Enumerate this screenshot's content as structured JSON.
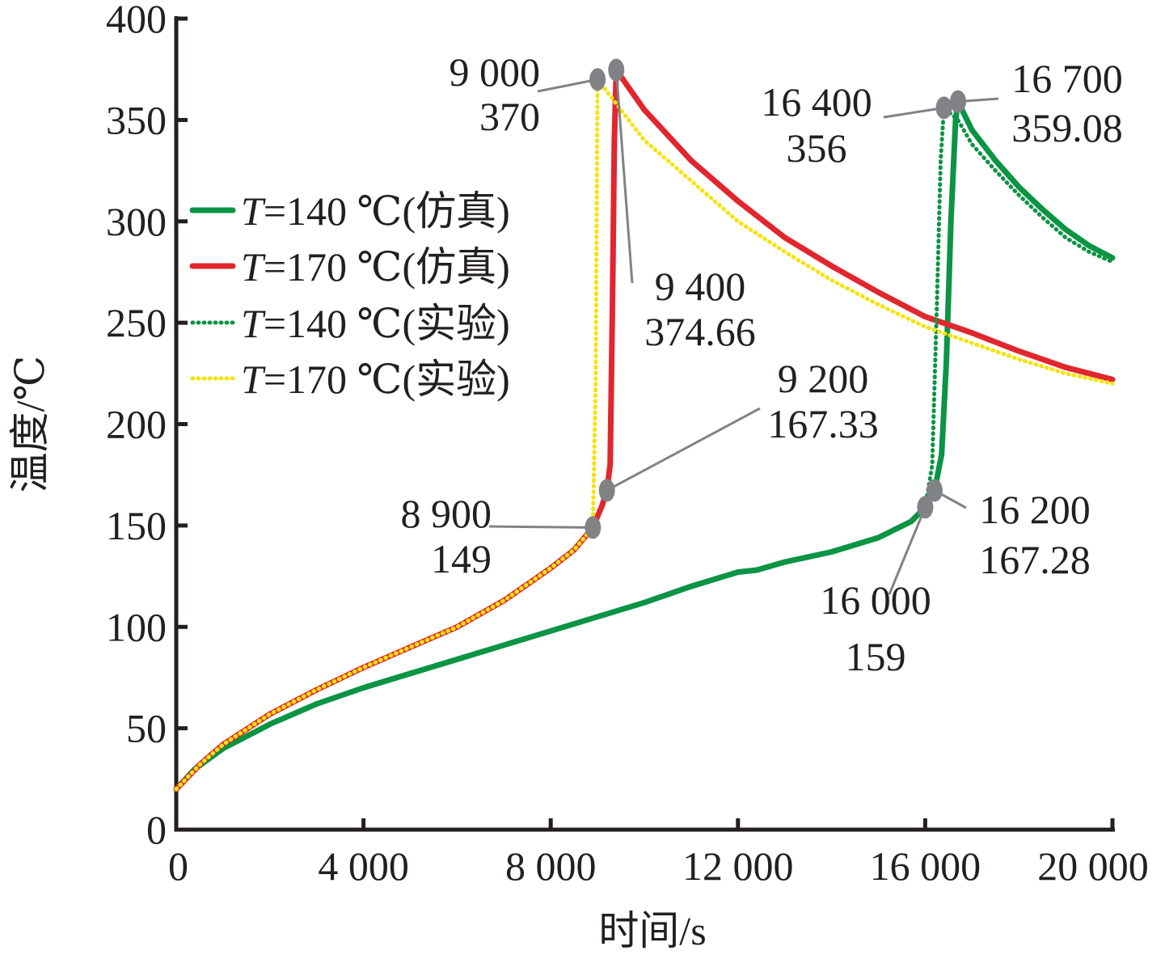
{
  "chart_data": {
    "type": "line",
    "xlabel": "时间/s",
    "ylabel": "温度/℃",
    "xlim": [
      0,
      20000
    ],
    "ylim": [
      0,
      400
    ],
    "x_ticks": [
      {
        "value": 0,
        "label": "0"
      },
      {
        "value": 4000,
        "label": "4 000"
      },
      {
        "value": 8000,
        "label": "8 000"
      },
      {
        "value": 12000,
        "label": "12 000"
      },
      {
        "value": 16000,
        "label": "16 000"
      },
      {
        "value": 20000,
        "label": "20 000"
      }
    ],
    "y_ticks": [
      {
        "value": 0,
        "label": "0"
      },
      {
        "value": 50,
        "label": "50"
      },
      {
        "value": 100,
        "label": "100"
      },
      {
        "value": 150,
        "label": "150"
      },
      {
        "value": 200,
        "label": "200"
      },
      {
        "value": 250,
        "label": "250"
      },
      {
        "value": 300,
        "label": "300"
      },
      {
        "value": 350,
        "label": "350"
      },
      {
        "value": 400,
        "label": "400"
      }
    ],
    "grid": false,
    "legend_position": "left-upper",
    "series": [
      {
        "name": "T=140 ℃(仿真)",
        "legend_prefix": "T",
        "legend_rest": "=140 ℃(仿真)",
        "color": "#0b9444",
        "style": "solid",
        "points": [
          [
            0,
            20
          ],
          [
            400,
            30
          ],
          [
            1000,
            40
          ],
          [
            2000,
            52
          ],
          [
            3000,
            62
          ],
          [
            4000,
            70
          ],
          [
            5000,
            77
          ],
          [
            6000,
            84
          ],
          [
            7000,
            91
          ],
          [
            8000,
            98
          ],
          [
            9000,
            105
          ],
          [
            10000,
            112
          ],
          [
            11000,
            120
          ],
          [
            12000,
            127
          ],
          [
            12400,
            128
          ],
          [
            13000,
            132
          ],
          [
            14000,
            137
          ],
          [
            15000,
            144
          ],
          [
            15700,
            152
          ],
          [
            16000,
            159
          ],
          [
            16200,
            167.28
          ],
          [
            16350,
            185
          ],
          [
            16450,
            230
          ],
          [
            16550,
            300
          ],
          [
            16650,
            350
          ],
          [
            16700,
            359.08
          ],
          [
            17000,
            345
          ],
          [
            17500,
            330
          ],
          [
            18000,
            317
          ],
          [
            18500,
            306
          ],
          [
            19000,
            296
          ],
          [
            19500,
            288
          ],
          [
            20000,
            282
          ]
        ]
      },
      {
        "name": "T=170 ℃(仿真)",
        "legend_prefix": "T",
        "legend_rest": "=170 ℃(仿真)",
        "color": "#e1262d",
        "style": "solid",
        "points": [
          [
            0,
            20
          ],
          [
            500,
            32
          ],
          [
            1000,
            42
          ],
          [
            2000,
            57
          ],
          [
            3000,
            69
          ],
          [
            4000,
            80
          ],
          [
            5000,
            90
          ],
          [
            6000,
            100
          ],
          [
            7000,
            113
          ],
          [
            8000,
            129
          ],
          [
            8500,
            138
          ],
          [
            8900,
            149
          ],
          [
            9100,
            160
          ],
          [
            9200,
            167.33
          ],
          [
            9270,
            180
          ],
          [
            9320,
            260
          ],
          [
            9360,
            340
          ],
          [
            9400,
            374.66
          ],
          [
            10000,
            355
          ],
          [
            11000,
            330
          ],
          [
            12000,
            310
          ],
          [
            13000,
            292
          ],
          [
            14000,
            278
          ],
          [
            15000,
            265
          ],
          [
            16000,
            253
          ],
          [
            17000,
            245
          ],
          [
            18000,
            236
          ],
          [
            19000,
            228
          ],
          [
            20000,
            222
          ]
        ]
      },
      {
        "name": "T=140 ℃(实验)",
        "legend_prefix": "T",
        "legend_rest": "=140 ℃(实验)",
        "color": "#0b9444",
        "style": "dotted",
        "points": [
          [
            0,
            20
          ],
          [
            400,
            30
          ],
          [
            1000,
            40
          ],
          [
            2000,
            52
          ],
          [
            3000,
            62
          ],
          [
            4000,
            70
          ],
          [
            5000,
            77
          ],
          [
            6000,
            84
          ],
          [
            7000,
            91
          ],
          [
            8000,
            98
          ],
          [
            9000,
            105
          ],
          [
            10000,
            112
          ],
          [
            11000,
            120
          ],
          [
            12000,
            127
          ],
          [
            12400,
            128
          ],
          [
            13000,
            132
          ],
          [
            14000,
            137
          ],
          [
            15000,
            144
          ],
          [
            15700,
            152
          ],
          [
            16000,
            159
          ],
          [
            16150,
            180
          ],
          [
            16250,
            260
          ],
          [
            16330,
            330
          ],
          [
            16400,
            356
          ],
          [
            16700,
            350
          ],
          [
            17000,
            338
          ],
          [
            17500,
            325
          ],
          [
            18000,
            313
          ],
          [
            18500,
            302
          ],
          [
            19000,
            292
          ],
          [
            19500,
            285
          ],
          [
            20000,
            280
          ]
        ]
      },
      {
        "name": "T=170 ℃(实验)",
        "legend_prefix": "T",
        "legend_rest": "=170 ℃(实验)",
        "color": "#f5e30f",
        "style": "dotted",
        "points": [
          [
            0,
            20
          ],
          [
            500,
            32
          ],
          [
            1000,
            42
          ],
          [
            2000,
            57
          ],
          [
            3000,
            69
          ],
          [
            4000,
            80
          ],
          [
            5000,
            90
          ],
          [
            6000,
            100
          ],
          [
            7000,
            113
          ],
          [
            8000,
            129
          ],
          [
            8500,
            138
          ],
          [
            8900,
            149
          ],
          [
            8960,
            220
          ],
          [
            9000,
            370
          ],
          [
            9500,
            355
          ],
          [
            10000,
            340
          ],
          [
            11000,
            320
          ],
          [
            12000,
            300
          ],
          [
            13000,
            285
          ],
          [
            14000,
            271
          ],
          [
            15000,
            259
          ],
          [
            16000,
            248
          ],
          [
            17000,
            240
          ],
          [
            18000,
            232
          ],
          [
            19000,
            225
          ],
          [
            20000,
            220
          ]
        ]
      }
    ],
    "annotations": [
      {
        "marker": [
          8900,
          149
        ],
        "text": [
          "8 900",
          "149"
        ],
        "color": "#808285"
      },
      {
        "marker": [
          9000,
          370
        ],
        "text": [
          "9 000",
          "370"
        ],
        "color": "#808285"
      },
      {
        "marker": [
          9200,
          167.33
        ],
        "text": [
          "9 200",
          "167.33"
        ],
        "color": "#808285"
      },
      {
        "marker": [
          9400,
          374.66
        ],
        "text": [
          "9 400",
          "374.66"
        ],
        "color": "#808285"
      },
      {
        "marker": [
          16000,
          159
        ],
        "text": [
          "16 000",
          "159"
        ],
        "color": "#808285"
      },
      {
        "marker": [
          16200,
          167.28
        ],
        "text": [
          "16 200",
          "167.28"
        ],
        "color": "#808285"
      },
      {
        "marker": [
          16400,
          356
        ],
        "text": [
          "16 400",
          "356"
        ],
        "color": "#808285"
      },
      {
        "marker": [
          16700,
          359.08
        ],
        "text": [
          "16 700",
          "359.08"
        ],
        "color": "#808285"
      }
    ]
  }
}
